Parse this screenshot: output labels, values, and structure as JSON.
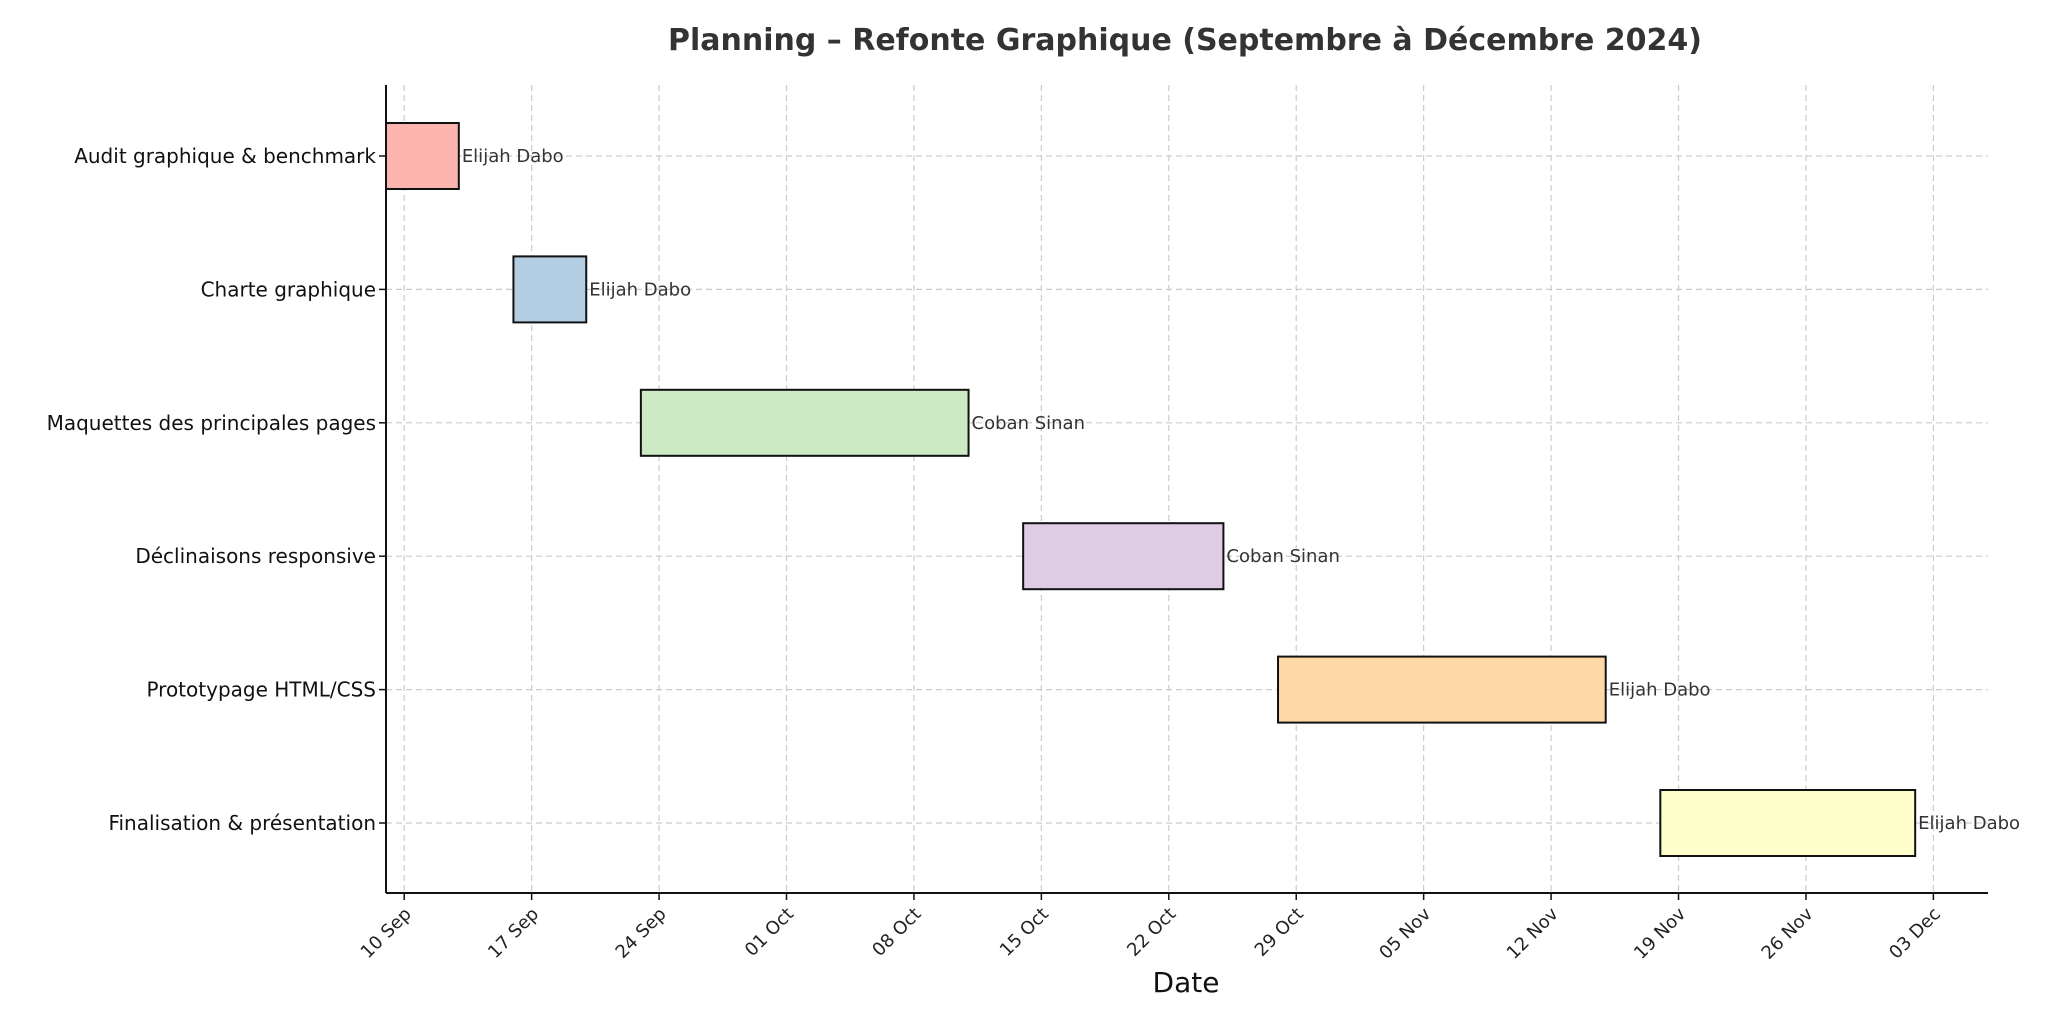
{
  "chart_data": {
    "type": "gantt",
    "title": "Planning – Refonte Graphique (Septembre à Décembre 2024)",
    "xlabel": "Date",
    "ylabel": "",
    "grid": true,
    "x_range": [
      "2024-09-09",
      "2024-12-06"
    ],
    "x_ticks": [
      {
        "date": "2024-09-10",
        "label": "10 Sep"
      },
      {
        "date": "2024-09-17",
        "label": "17 Sep"
      },
      {
        "date": "2024-09-24",
        "label": "24 Sep"
      },
      {
        "date": "2024-10-01",
        "label": "01 Oct"
      },
      {
        "date": "2024-10-08",
        "label": "08 Oct"
      },
      {
        "date": "2024-10-15",
        "label": "15 Oct"
      },
      {
        "date": "2024-10-22",
        "label": "22 Oct"
      },
      {
        "date": "2024-10-29",
        "label": "29 Oct"
      },
      {
        "date": "2024-11-05",
        "label": "05 Nov"
      },
      {
        "date": "2024-11-12",
        "label": "12 Nov"
      },
      {
        "date": "2024-11-19",
        "label": "19 Nov"
      },
      {
        "date": "2024-11-26",
        "label": "26 Nov"
      },
      {
        "date": "2024-12-03",
        "label": "03 Dec"
      }
    ],
    "tasks": [
      {
        "name": "Audit graphique & benchmark",
        "start": "2024-09-09",
        "end": "2024-09-13",
        "owner": "Elijah Dabo",
        "color": "#fbb4ae"
      },
      {
        "name": "Charte graphique",
        "start": "2024-09-16",
        "end": "2024-09-20",
        "owner": "Elijah Dabo",
        "color": "#b3cde3"
      },
      {
        "name": "Maquettes des principales pages",
        "start": "2024-09-23",
        "end": "2024-10-11",
        "owner": "Coban Sinan",
        "color": "#ccebc5"
      },
      {
        "name": "Déclinaisons responsive",
        "start": "2024-10-14",
        "end": "2024-10-25",
        "owner": "Coban Sinan",
        "color": "#decbe4"
      },
      {
        "name": "Prototypage HTML/CSS",
        "start": "2024-10-28",
        "end": "2024-11-15",
        "owner": "Elijah Dabo",
        "color": "#fed9a6"
      },
      {
        "name": "Finalisation & présentation",
        "start": "2024-11-18",
        "end": "2024-12-02",
        "owner": "Elijah Dabo",
        "color": "#ffffcc"
      }
    ]
  }
}
